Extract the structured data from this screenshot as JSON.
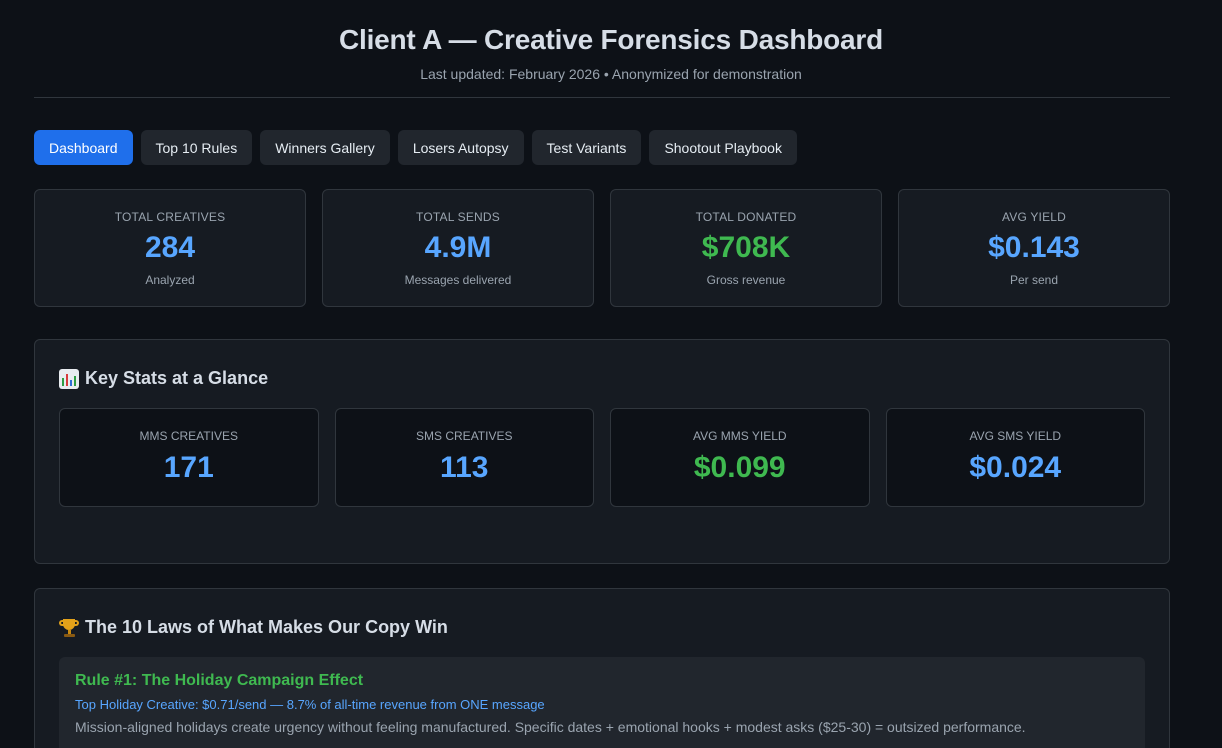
{
  "header": {
    "title": "Client A — Creative Forensics Dashboard",
    "subtitle": "Last updated: February 2026 • Anonymized for demonstration"
  },
  "tabs": [
    {
      "label": "Dashboard",
      "active": true
    },
    {
      "label": "Top 10 Rules",
      "active": false
    },
    {
      "label": "Winners Gallery",
      "active": false
    },
    {
      "label": "Losers Autopsy",
      "active": false
    },
    {
      "label": "Test Variants",
      "active": false
    },
    {
      "label": "Shootout Playbook",
      "active": false
    }
  ],
  "stats": [
    {
      "label": "TOTAL CREATIVES",
      "value": "284",
      "note": "Analyzed",
      "color": "#58a6ff"
    },
    {
      "label": "TOTAL SENDS",
      "value": "4.9M",
      "note": "Messages delivered",
      "color": "#58a6ff"
    },
    {
      "label": "TOTAL DONATED",
      "value": "$708K",
      "note": "Gross revenue",
      "color": "#3fb950"
    },
    {
      "label": "AVG YIELD",
      "value": "$0.143",
      "note": "Per send",
      "color": "#58a6ff"
    }
  ],
  "key_stats": {
    "title": "Key Stats at a Glance",
    "icon": "bar-chart-icon",
    "items": [
      {
        "label": "MMS CREATIVES",
        "value": "171"
      },
      {
        "label": "SMS CREATIVES",
        "value": "113"
      },
      {
        "label": "AVG MMS YIELD",
        "value": "$0.099"
      },
      {
        "label": "AVG SMS YIELD",
        "value": "$0.024"
      }
    ]
  },
  "laws": {
    "title": "The 10 Laws of What Makes Our Copy Win",
    "icon": "trophy-icon",
    "rules": [
      {
        "title": "Rule #1: The Holiday Campaign Effect",
        "stat": "Top Holiday Creative: $0.71/send — 8.7% of all-time revenue from ONE message",
        "desc": "Mission-aligned holidays create urgency without feeling manufactured. Specific dates + emotional hooks + modest asks ($25-30) = outsized performance."
      }
    ]
  }
}
